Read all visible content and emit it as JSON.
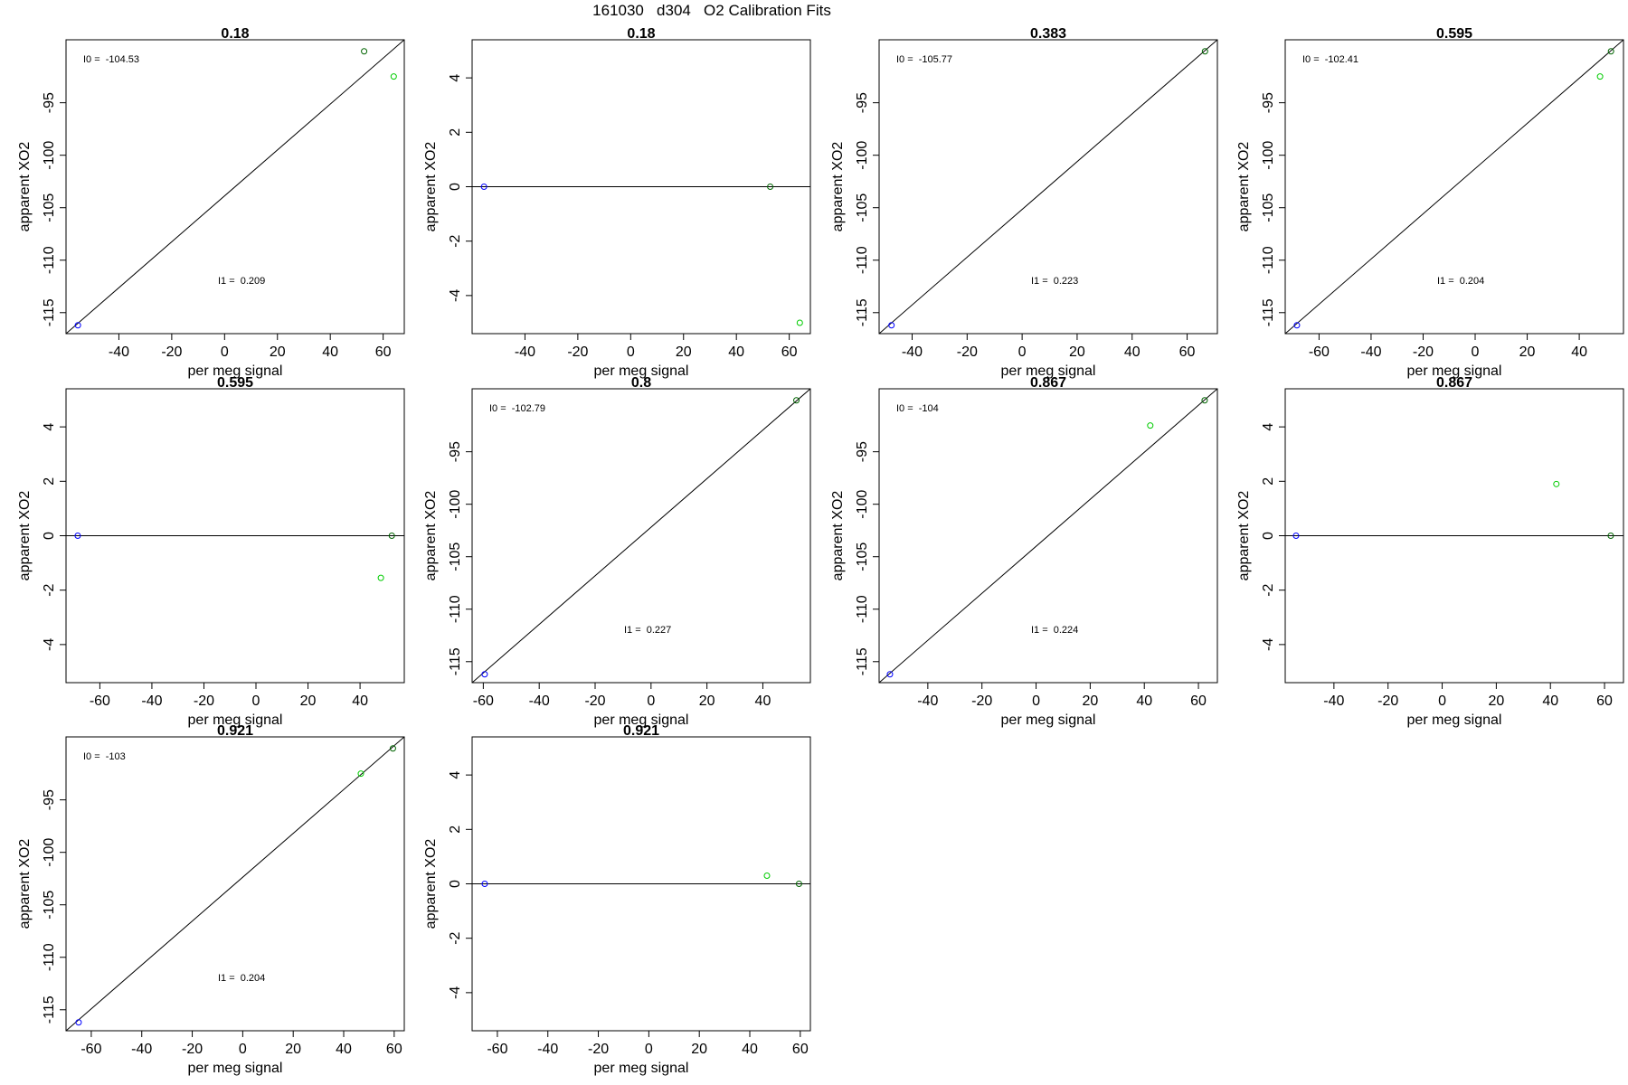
{
  "figure": {
    "title": "161030   d304   O2 Calibration Fits"
  },
  "colors": {
    "reference_point": "#0000ff",
    "calibration_point": "#00cc00",
    "high_point": "#006400",
    "fit_line": "#000000"
  },
  "chart_data": [
    {
      "type": "scatter",
      "title": "0.18",
      "xlabel": "per meg signal",
      "ylabel": "apparent XO2",
      "xlim": [
        -60,
        68
      ],
      "ylim": [
        -117,
        -89
      ],
      "xticks": [
        -40,
        -20,
        0,
        20,
        40,
        60
      ],
      "yticks": [
        -115,
        -110,
        -105,
        -100,
        -95
      ],
      "fit_line": "diagonal",
      "annotations": [
        {
          "label": "I0 = ",
          "value": "-104.53",
          "pos": "top-left"
        },
        {
          "label": "I1 = ",
          "value": "0.209",
          "pos": "bottom-center"
        }
      ],
      "points": [
        {
          "x": -55.5,
          "y": -116.2,
          "group": "reference"
        },
        {
          "x": 52.8,
          "y": -90.1,
          "group": "high"
        },
        {
          "x": 64.0,
          "y": -92.5,
          "group": "calibration"
        }
      ]
    },
    {
      "type": "scatter",
      "title": "0.18",
      "xlabel": "per meg signal",
      "ylabel": "apparent XO2",
      "xlim": [
        -60,
        68
      ],
      "ylim": [
        -5.4,
        5.4
      ],
      "xticks": [
        -40,
        -20,
        0,
        20,
        40,
        60
      ],
      "yticks": [
        -4,
        -2,
        0,
        2,
        4
      ],
      "fit_line": "horizontal",
      "annotations": [],
      "points": [
        {
          "x": -55.5,
          "y": 0,
          "group": "reference"
        },
        {
          "x": 52.8,
          "y": 0,
          "group": "high"
        },
        {
          "x": 64.0,
          "y": -5.0,
          "group": "calibration"
        }
      ]
    },
    {
      "type": "scatter",
      "title": "0.383",
      "xlabel": "per meg signal",
      "ylabel": "apparent XO2",
      "xlim": [
        -52,
        71
      ],
      "ylim": [
        -117,
        -89
      ],
      "xticks": [
        -40,
        -20,
        0,
        20,
        40,
        60
      ],
      "yticks": [
        -115,
        -110,
        -105,
        -100,
        -95
      ],
      "fit_line": "diagonal",
      "annotations": [
        {
          "label": "I0 = ",
          "value": "-105.77",
          "pos": "top-left"
        },
        {
          "label": "I1 = ",
          "value": "0.223",
          "pos": "bottom-center"
        }
      ],
      "points": [
        {
          "x": -47.5,
          "y": -116.2,
          "group": "reference"
        },
        {
          "x": 66.5,
          "y": -90.1,
          "group": "high"
        }
      ]
    },
    {
      "type": "scatter",
      "title": "0.595",
      "xlabel": "per meg signal",
      "ylabel": "apparent XO2",
      "xlim": [
        -73,
        57
      ],
      "ylim": [
        -117,
        -89
      ],
      "xticks": [
        -60,
        -40,
        -20,
        0,
        20,
        40
      ],
      "yticks": [
        -115,
        -110,
        -105,
        -100,
        -95
      ],
      "fit_line": "diagonal",
      "annotations": [
        {
          "label": "I0 = ",
          "value": "-102.41",
          "pos": "top-left"
        },
        {
          "label": "I1 = ",
          "value": "0.204",
          "pos": "bottom-center"
        }
      ],
      "points": [
        {
          "x": -68.5,
          "y": -116.2,
          "group": "reference"
        },
        {
          "x": 52.2,
          "y": -90.1,
          "group": "high"
        },
        {
          "x": 48.0,
          "y": -92.5,
          "group": "calibration"
        }
      ]
    },
    {
      "type": "scatter",
      "title": "0.595",
      "xlabel": "per meg signal",
      "ylabel": "apparent XO2",
      "xlim": [
        -73,
        57
      ],
      "ylim": [
        -5.4,
        5.4
      ],
      "xticks": [
        -60,
        -40,
        -20,
        0,
        20,
        40
      ],
      "yticks": [
        -4,
        -2,
        0,
        2,
        4
      ],
      "fit_line": "horizontal",
      "annotations": [],
      "points": [
        {
          "x": -68.5,
          "y": 0,
          "group": "reference"
        },
        {
          "x": 52.2,
          "y": 0,
          "group": "high"
        },
        {
          "x": 48.0,
          "y": -1.55,
          "group": "calibration"
        }
      ]
    },
    {
      "type": "scatter",
      "title": "0.8",
      "xlabel": "per meg signal",
      "ylabel": "apparent XO2",
      "xlim": [
        -64,
        57
      ],
      "ylim": [
        -117,
        -89
      ],
      "xticks": [
        -60,
        -40,
        -20,
        0,
        20,
        40
      ],
      "yticks": [
        -115,
        -110,
        -105,
        -100,
        -95
      ],
      "fit_line": "diagonal",
      "annotations": [
        {
          "label": "I0 = ",
          "value": "-102.79",
          "pos": "top-left"
        },
        {
          "label": "I1 = ",
          "value": "0.227",
          "pos": "bottom-center"
        }
      ],
      "points": [
        {
          "x": -59.5,
          "y": -116.2,
          "group": "reference"
        },
        {
          "x": 52.0,
          "y": -90.1,
          "group": "high"
        }
      ]
    },
    {
      "type": "scatter",
      "title": "0.867",
      "xlabel": "per meg signal",
      "ylabel": "apparent XO2",
      "xlim": [
        -58,
        67
      ],
      "ylim": [
        -117,
        -89
      ],
      "xticks": [
        -40,
        -20,
        0,
        20,
        40,
        60
      ],
      "yticks": [
        -115,
        -110,
        -105,
        -100,
        -95
      ],
      "fit_line": "diagonal",
      "annotations": [
        {
          "label": "I0 = ",
          "value": "-104",
          "pos": "top-left"
        },
        {
          "label": "I1 = ",
          "value": "0.224",
          "pos": "bottom-center"
        }
      ],
      "points": [
        {
          "x": -54.0,
          "y": -116.2,
          "group": "reference"
        },
        {
          "x": 62.3,
          "y": -90.1,
          "group": "high"
        },
        {
          "x": 42.2,
          "y": -92.5,
          "group": "calibration"
        }
      ]
    },
    {
      "type": "scatter",
      "title": "0.867",
      "xlabel": "per meg signal",
      "ylabel": "apparent XO2",
      "xlim": [
        -58,
        67
      ],
      "ylim": [
        -5.4,
        5.4
      ],
      "xticks": [
        -40,
        -20,
        0,
        20,
        40,
        60
      ],
      "yticks": [
        -4,
        -2,
        0,
        2,
        4
      ],
      "fit_line": "horizontal",
      "annotations": [],
      "points": [
        {
          "x": -54.0,
          "y": 0,
          "group": "reference"
        },
        {
          "x": 62.3,
          "y": 0,
          "group": "high"
        },
        {
          "x": 42.2,
          "y": 1.9,
          "group": "calibration"
        }
      ]
    },
    {
      "type": "scatter",
      "title": "0.921",
      "xlabel": "per meg signal",
      "ylabel": "apparent XO2",
      "xlim": [
        -70,
        64
      ],
      "ylim": [
        -117,
        -89
      ],
      "xticks": [
        -60,
        -40,
        -20,
        0,
        20,
        40,
        60
      ],
      "yticks": [
        -115,
        -110,
        -105,
        -100,
        -95
      ],
      "fit_line": "diagonal",
      "annotations": [
        {
          "label": "I0 = ",
          "value": "-103",
          "pos": "top-left"
        },
        {
          "label": "I1 = ",
          "value": "0.204",
          "pos": "bottom-center"
        }
      ],
      "points": [
        {
          "x": -65.0,
          "y": -116.2,
          "group": "reference"
        },
        {
          "x": 59.5,
          "y": -90.1,
          "group": "high"
        },
        {
          "x": 46.8,
          "y": -92.5,
          "group": "calibration"
        }
      ]
    },
    {
      "type": "scatter",
      "title": "0.921",
      "xlabel": "per meg signal",
      "ylabel": "apparent XO2",
      "xlim": [
        -70,
        64
      ],
      "ylim": [
        -5.4,
        5.4
      ],
      "xticks": [
        -60,
        -40,
        -20,
        0,
        20,
        40,
        60
      ],
      "yticks": [
        -4,
        -2,
        0,
        2,
        4
      ],
      "fit_line": "horizontal",
      "annotations": [],
      "points": [
        {
          "x": -65.0,
          "y": 0,
          "group": "reference"
        },
        {
          "x": 59.5,
          "y": 0,
          "group": "high"
        },
        {
          "x": 46.8,
          "y": 0.3,
          "group": "calibration"
        }
      ]
    }
  ]
}
